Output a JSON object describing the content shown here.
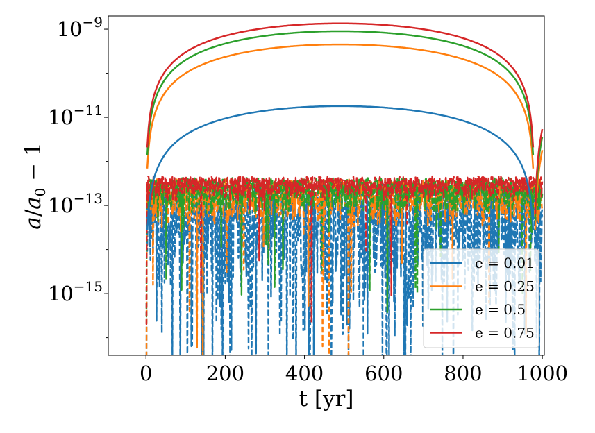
{
  "chart_data": {
    "type": "line",
    "title": "",
    "xlabel": "t [yr]",
    "ylabel": "a/a0 - 1",
    "ylabel_parts": {
      "a": "a",
      "sep": "/",
      "a0_base": "a",
      "a0_sub": "0",
      "tail": " − 1"
    },
    "xlim": [
      -95,
      1005
    ],
    "ylog": true,
    "ylim_log10": [
      -16.4,
      -8.7
    ],
    "x_ticks": [
      0,
      200,
      400,
      600,
      800,
      1000
    ],
    "x_tick_labels": [
      "0",
      "200",
      "400",
      "600",
      "800",
      "1000"
    ],
    "y_ticks_log10": [
      -9,
      -11,
      -13,
      -15
    ],
    "y_tick_base": "10",
    "y_tick_exponents": [
      "−9",
      "−11",
      "−13",
      "−15"
    ],
    "legend_position": "lower-right",
    "series": [
      {
        "name": "e = 0.01",
        "color": "#1f77b4",
        "smooth_peak": 1.8e-11,
        "noise_floor": 1e-15,
        "noise_top": 3.5e-13,
        "dip_bottom": 1e-17,
        "dip_rate": 0.1
      },
      {
        "name": "e = 0.25",
        "color": "#ff7f0e",
        "smooth_peak": 4.5e-10,
        "noise_floor": 3e-14,
        "noise_top": 4e-13,
        "dip_bottom": 1e-17,
        "dip_rate": 0.03
      },
      {
        "name": "e = 0.5",
        "color": "#2ca02c",
        "smooth_peak": 9e-10,
        "noise_floor": 6e-14,
        "noise_top": 4.2e-13,
        "dip_bottom": 3e-16,
        "dip_rate": 0.02
      },
      {
        "name": "e = 0.75",
        "color": "#d62728",
        "smooth_peak": 1.35e-09,
        "noise_floor": 1.2e-13,
        "noise_top": 4.6e-13,
        "dip_bottom": 2e-16,
        "dip_rate": 0.01
      }
    ],
    "smooth_time_span": [
      0,
      980
    ],
    "noise_time_span": [
      0,
      1000
    ]
  }
}
